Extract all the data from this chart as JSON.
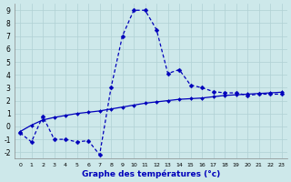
{
  "x_hours": [
    0,
    1,
    2,
    3,
    4,
    5,
    6,
    7,
    8,
    9,
    10,
    11,
    12,
    13,
    14,
    15,
    16,
    17,
    18,
    19,
    20,
    21,
    22,
    23
  ],
  "temp_curve": [
    -0.5,
    -1.2,
    0.8,
    -1.0,
    -1.0,
    -1.2,
    -1.1,
    -2.2,
    3.0,
    7.0,
    9.0,
    9.0,
    7.5,
    4.1,
    4.4,
    3.2,
    3.0,
    2.7,
    2.6,
    2.6,
    2.4,
    2.5,
    2.5,
    2.5
  ],
  "trend_line": [
    -0.4,
    0.1,
    0.5,
    0.7,
    0.85,
    1.0,
    1.1,
    1.2,
    1.35,
    1.5,
    1.65,
    1.8,
    1.9,
    2.0,
    2.1,
    2.15,
    2.2,
    2.3,
    2.4,
    2.45,
    2.5,
    2.55,
    2.6,
    2.65
  ],
  "xlabel": "Graphe des températures (°c)",
  "ylim": [
    -2.5,
    9.5
  ],
  "xlim": [
    -0.5,
    23.5
  ],
  "yticks": [
    -2,
    -1,
    0,
    1,
    2,
    3,
    4,
    5,
    6,
    7,
    8,
    9
  ],
  "xticks": [
    0,
    1,
    2,
    3,
    4,
    5,
    6,
    7,
    8,
    9,
    10,
    11,
    12,
    13,
    14,
    15,
    16,
    17,
    18,
    19,
    20,
    21,
    22,
    23
  ],
  "bg_color": "#cde8ea",
  "grid_color": "#b0d0d4",
  "line_color": "#0000bb",
  "markersize_dash": 2.5,
  "markersize_solid": 2.0,
  "linewidth": 0.9
}
